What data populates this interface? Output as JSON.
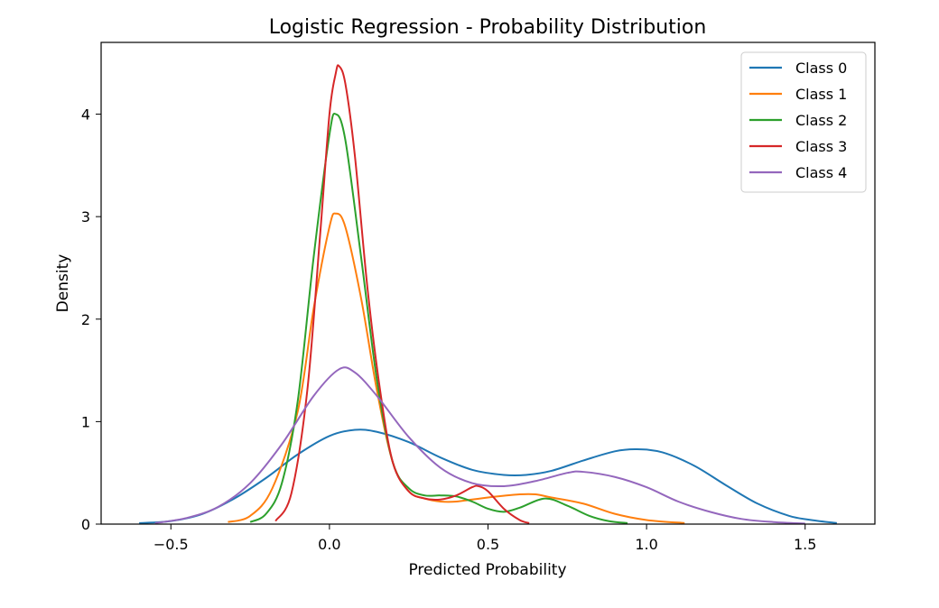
{
  "chart_data": {
    "type": "line",
    "title": "Logistic Regression - Probability Distribution",
    "xlabel": "Predicted Probability",
    "ylabel": "Density",
    "xlim": [
      -0.72,
      1.72
    ],
    "ylim": [
      0,
      4.7
    ],
    "xticks": [
      -0.5,
      0.0,
      0.5,
      1.0,
      1.5
    ],
    "xtick_labels": [
      "−0.5",
      "0.0",
      "0.5",
      "1.0",
      "1.5"
    ],
    "yticks": [
      0,
      1,
      2,
      3,
      4
    ],
    "ytick_labels": [
      "0",
      "1",
      "2",
      "3",
      "4"
    ],
    "grid": false,
    "legend_position": "top-right",
    "series": [
      {
        "name": "Class 0",
        "color": "#1f77b4",
        "points": [
          [
            -0.6,
            0.01
          ],
          [
            -0.5,
            0.03
          ],
          [
            -0.4,
            0.1
          ],
          [
            -0.3,
            0.25
          ],
          [
            -0.2,
            0.45
          ],
          [
            -0.1,
            0.68
          ],
          [
            0.0,
            0.86
          ],
          [
            0.08,
            0.92
          ],
          [
            0.15,
            0.9
          ],
          [
            0.25,
            0.8
          ],
          [
            0.35,
            0.65
          ],
          [
            0.45,
            0.53
          ],
          [
            0.55,
            0.48
          ],
          [
            0.62,
            0.48
          ],
          [
            0.7,
            0.52
          ],
          [
            0.8,
            0.62
          ],
          [
            0.9,
            0.71
          ],
          [
            0.97,
            0.73
          ],
          [
            1.05,
            0.7
          ],
          [
            1.15,
            0.57
          ],
          [
            1.25,
            0.38
          ],
          [
            1.35,
            0.2
          ],
          [
            1.45,
            0.08
          ],
          [
            1.52,
            0.04
          ],
          [
            1.6,
            0.01
          ]
        ]
      },
      {
        "name": "Class 1",
        "color": "#ff7f0e",
        "points": [
          [
            -0.32,
            0.02
          ],
          [
            -0.25,
            0.08
          ],
          [
            -0.18,
            0.35
          ],
          [
            -0.1,
            1.1
          ],
          [
            -0.05,
            2.1
          ],
          [
            0.0,
            2.9
          ],
          [
            0.02,
            3.03
          ],
          [
            0.05,
            2.9
          ],
          [
            0.1,
            2.2
          ],
          [
            0.15,
            1.3
          ],
          [
            0.2,
            0.6
          ],
          [
            0.25,
            0.32
          ],
          [
            0.3,
            0.25
          ],
          [
            0.35,
            0.22
          ],
          [
            0.4,
            0.22
          ],
          [
            0.5,
            0.26
          ],
          [
            0.6,
            0.29
          ],
          [
            0.65,
            0.29
          ],
          [
            0.7,
            0.26
          ],
          [
            0.8,
            0.2
          ],
          [
            0.9,
            0.1
          ],
          [
            1.0,
            0.04
          ],
          [
            1.12,
            0.01
          ]
        ]
      },
      {
        "name": "Class 2",
        "color": "#2ca02c",
        "points": [
          [
            -0.25,
            0.02
          ],
          [
            -0.2,
            0.1
          ],
          [
            -0.15,
            0.4
          ],
          [
            -0.1,
            1.2
          ],
          [
            -0.05,
            2.6
          ],
          [
            0.0,
            3.8
          ],
          [
            0.02,
            4.0
          ],
          [
            0.05,
            3.75
          ],
          [
            0.1,
            2.6
          ],
          [
            0.15,
            1.4
          ],
          [
            0.2,
            0.6
          ],
          [
            0.25,
            0.35
          ],
          [
            0.3,
            0.28
          ],
          [
            0.35,
            0.28
          ],
          [
            0.4,
            0.27
          ],
          [
            0.45,
            0.22
          ],
          [
            0.5,
            0.15
          ],
          [
            0.55,
            0.12
          ],
          [
            0.6,
            0.16
          ],
          [
            0.68,
            0.25
          ],
          [
            0.75,
            0.18
          ],
          [
            0.82,
            0.08
          ],
          [
            0.88,
            0.03
          ],
          [
            0.94,
            0.01
          ]
        ]
      },
      {
        "name": "Class 3",
        "color": "#d62728",
        "points": [
          [
            -0.17,
            0.03
          ],
          [
            -0.12,
            0.3
          ],
          [
            -0.07,
            1.3
          ],
          [
            -0.03,
            2.8
          ],
          [
            0.0,
            4.0
          ],
          [
            0.02,
            4.4
          ],
          [
            0.03,
            4.47
          ],
          [
            0.05,
            4.3
          ],
          [
            0.08,
            3.6
          ],
          [
            0.12,
            2.3
          ],
          [
            0.16,
            1.3
          ],
          [
            0.2,
            0.6
          ],
          [
            0.25,
            0.32
          ],
          [
            0.3,
            0.25
          ],
          [
            0.35,
            0.24
          ],
          [
            0.4,
            0.28
          ],
          [
            0.45,
            0.36
          ],
          [
            0.47,
            0.37
          ],
          [
            0.5,
            0.32
          ],
          [
            0.55,
            0.15
          ],
          [
            0.6,
            0.04
          ],
          [
            0.63,
            0.01
          ]
        ]
      },
      {
        "name": "Class 4",
        "color": "#9467bd",
        "points": [
          [
            -0.55,
            0.01
          ],
          [
            -0.45,
            0.06
          ],
          [
            -0.35,
            0.17
          ],
          [
            -0.25,
            0.4
          ],
          [
            -0.15,
            0.78
          ],
          [
            -0.05,
            1.25
          ],
          [
            0.03,
            1.51
          ],
          [
            0.08,
            1.48
          ],
          [
            0.15,
            1.25
          ],
          [
            0.25,
            0.85
          ],
          [
            0.35,
            0.55
          ],
          [
            0.45,
            0.4
          ],
          [
            0.55,
            0.37
          ],
          [
            0.65,
            0.42
          ],
          [
            0.75,
            0.5
          ],
          [
            0.8,
            0.51
          ],
          [
            0.9,
            0.46
          ],
          [
            1.0,
            0.36
          ],
          [
            1.1,
            0.22
          ],
          [
            1.2,
            0.12
          ],
          [
            1.3,
            0.05
          ],
          [
            1.4,
            0.02
          ],
          [
            1.5,
            0.005
          ]
        ]
      }
    ]
  }
}
